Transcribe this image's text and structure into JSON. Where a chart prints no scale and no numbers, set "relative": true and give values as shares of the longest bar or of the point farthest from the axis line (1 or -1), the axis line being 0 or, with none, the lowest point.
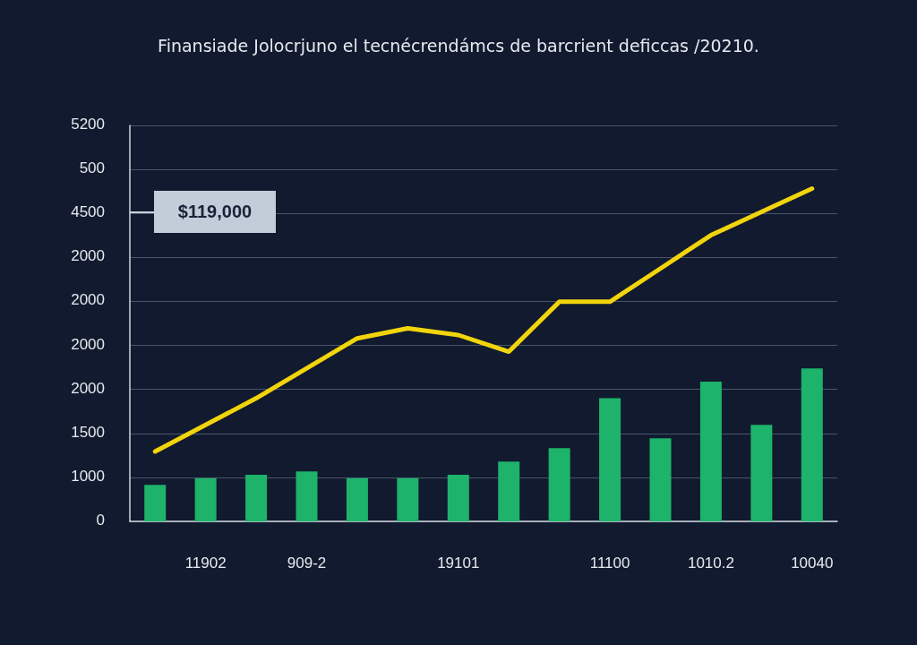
{
  "chart_data": {
    "type": "bar",
    "title": "Finansiade Jolocrjuno el tecnécrendámcs de barcrient deficcas /20210.",
    "relative": true,
    "categories": [
      null,
      "11902",
      null,
      "909-2",
      null,
      null,
      "19101",
      null,
      null,
      "11100",
      null,
      "1010.2",
      null,
      "10040"
    ],
    "grid": "y",
    "series": [
      {
        "color": "#1db36b",
        "values": [
          0.11,
          0.13,
          0.14,
          0.15,
          0.13,
          0.13,
          0.14,
          0.18,
          0.22,
          0.37,
          0.25,
          0.42,
          0.29,
          0.46
        ]
      },
      {
        "type": "line",
        "color": "#f2d40c",
        "values": [
          0.21,
          0.29,
          0.37,
          0.46,
          0.55,
          0.58,
          0.56,
          0.51,
          0.66,
          0.66,
          0.76,
          0.86,
          0.93,
          1
        ]
      }
    ],
    "annotations": [
      "$119,000",
      "0",
      "1000",
      "1500",
      "2000",
      "2000",
      "2000",
      "2000",
      "4500",
      "500",
      "5200"
    ]
  }
}
